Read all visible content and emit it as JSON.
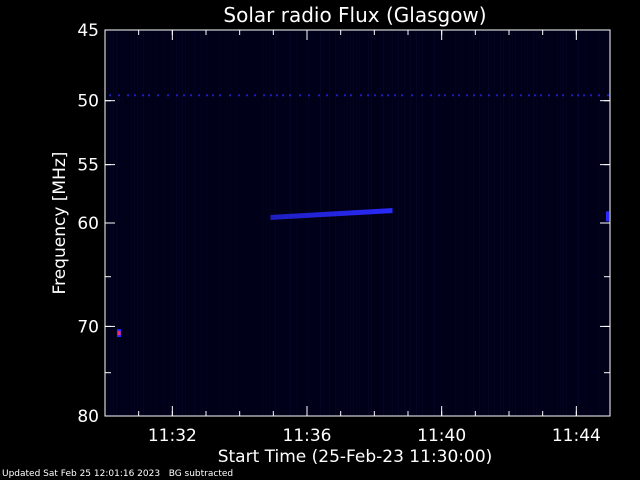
{
  "chart_data": {
    "type": "heatmap",
    "title": "Solar radio Flux (Glasgow)",
    "xlabel": "Start Time (25-Feb-23 11:30:00)",
    "ylabel": "Frequency [MHz]",
    "x_range": [
      "11:30:00",
      "11:45:00"
    ],
    "xticks": [
      "11:32",
      "11:36",
      "11:40",
      "11:44"
    ],
    "y_range": [
      45,
      80
    ],
    "yticks": [
      45,
      50,
      55,
      60,
      70,
      80
    ],
    "y_scale": "log",
    "background_color": "#000022",
    "colors": {
      "emission": "#2a2aff",
      "hot": "#ff2a55",
      "axes": "#ffffff"
    },
    "features": [
      {
        "name": "",
        "type": "drifting band",
        "start_time": "11:34:55",
        "end_time": "11:38:30",
        "freq_start": 59.5,
        "freq_end": 58.9
      },
      {
        "name": "",
        "type": "persistent line",
        "start_time": "11:30:00",
        "end_time": "11:45:00",
        "freq": 49.6
      },
      {
        "name": "",
        "type": "point",
        "time": "11:30:25",
        "freq": 70.7
      }
    ]
  },
  "footer": {
    "updated": "Updated Sat Feb 25 12:01:16 2023",
    "note": "BG subtracted"
  }
}
